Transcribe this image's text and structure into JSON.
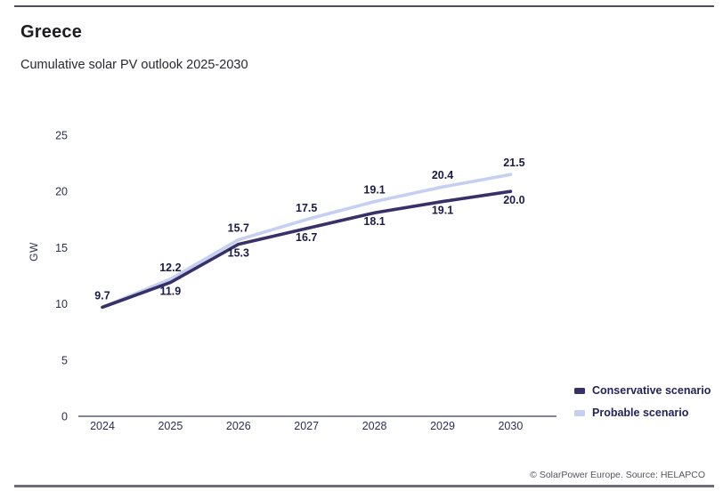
{
  "header": {
    "title": "Greece",
    "subtitle": "Cumulative solar PV outlook 2025-2030"
  },
  "chart_data": {
    "type": "line",
    "title": "Cumulative solar PV outlook 2025-2030",
    "xlabel": "",
    "ylabel": "GW",
    "ylim": [
      0,
      25
    ],
    "yticks": [
      0,
      5,
      10,
      15,
      20,
      25
    ],
    "grid": false,
    "legend_position": "bottom-right",
    "categories": [
      "2024",
      "2025",
      "2026",
      "2027",
      "2028",
      "2029",
      "2030"
    ],
    "series": [
      {
        "name": "Conservative scenario",
        "color": "#373168",
        "values": [
          9.7,
          11.9,
          15.3,
          16.7,
          18.1,
          19.1,
          20.0
        ],
        "labels": [
          "",
          "11.9",
          "15.3",
          "16.7",
          "18.1",
          "19.1",
          "20.0"
        ],
        "label_position": "below"
      },
      {
        "name": "Probable scenario",
        "color": "#c5cff2",
        "values": [
          9.7,
          12.2,
          15.7,
          17.5,
          19.1,
          20.4,
          21.5
        ],
        "labels": [
          "9.7",
          "12.2",
          "15.7",
          "17.5",
          "19.1",
          "20.4",
          "21.5"
        ],
        "label_position": "above"
      }
    ]
  },
  "footer": {
    "attribution": "© SolarPower Europe. Source: HELAPCO"
  }
}
